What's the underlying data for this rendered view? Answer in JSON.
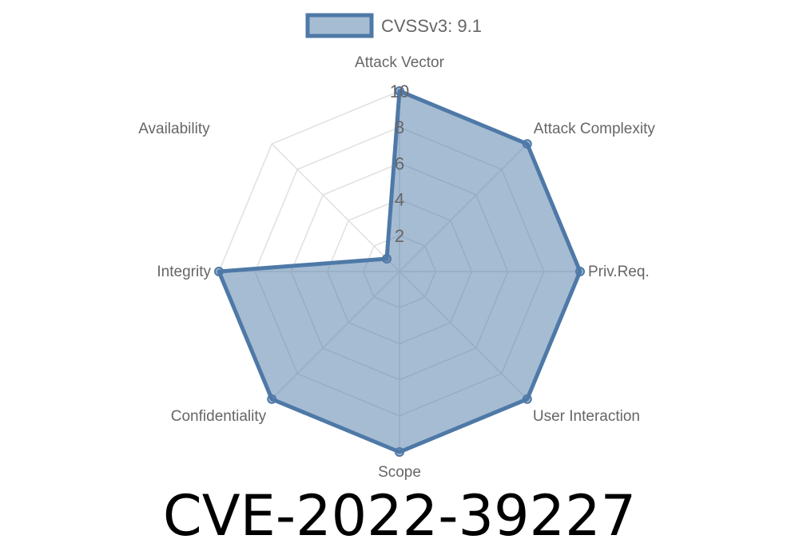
{
  "chart_data": {
    "type": "radar",
    "legend": {
      "label": "CVSSv3: 9.1",
      "placement": "top"
    },
    "axes": [
      "Attack Vector",
      "Attack Complexity",
      "Priv.Req.",
      "User Interaction",
      "Scope",
      "Confidentiality",
      "Integrity",
      "Availability"
    ],
    "series": [
      {
        "name": "CVSSv3: 9.1",
        "values": [
          10,
          10,
          10,
          10,
          10,
          10,
          10,
          1
        ]
      }
    ],
    "rlim": [
      0,
      10
    ],
    "ticks": [
      "2",
      "4",
      "6",
      "8",
      "10"
    ],
    "grid": true,
    "colors": {
      "line": "#4e79a7",
      "fill": "rgba(78,121,167,0.5)",
      "grid": "#e0e0e0",
      "label": "#666666"
    }
  },
  "caption": "CVE-2022-39227"
}
